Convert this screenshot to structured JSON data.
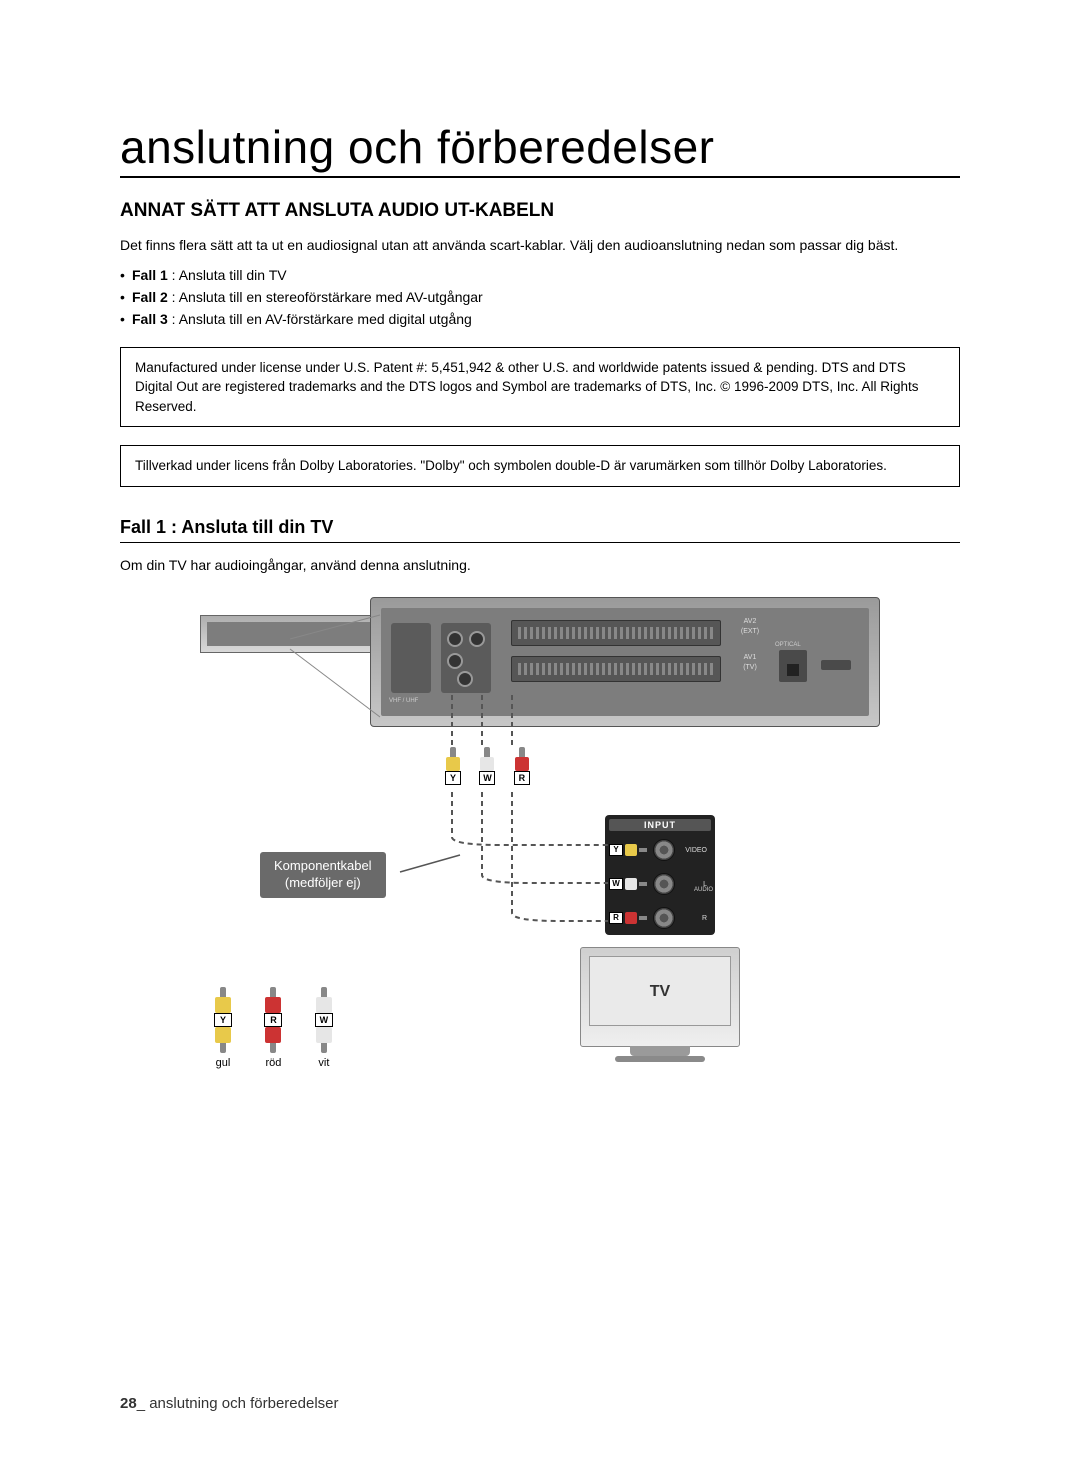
{
  "page": {
    "title": "anslutning och förberedelser",
    "section_heading": "ANNAT SÄTT ATT ANSLUTA AUDIO UT-KABELN",
    "intro": "Det finns flera sätt att ta ut en audiosignal utan att använda scart-kablar. Välj den audioanslutning nedan som passar dig bäst.",
    "bullets": [
      {
        "label": "Fall 1",
        "desc": " : Ansluta till din TV"
      },
      {
        "label": "Fall 2",
        "desc": " : Ansluta till en stereoförstärkare med AV-utgångar"
      },
      {
        "label": "Fall 3",
        "desc": " : Ansluta till en AV-förstärkare med digital utgång"
      }
    ],
    "license1": "Manufactured under license under U.S. Patent #: 5,451,942 & other U.S. and worldwide patents issued & pending. DTS and DTS Digital Out are registered trademarks and the DTS logos and Symbol are trademarks of DTS, Inc. © 1996-2009 DTS, Inc. All Rights Reserved.",
    "license2": "Tillverkad under licens från Dolby Laboratories. \"Dolby\" och symbolen double-D är varumärken som tillhör Dolby Laboratories.",
    "sub_heading": "Fall 1 : Ansluta till din TV",
    "sub_desc": "Om din TV har audioingångar, använd denna anslutning."
  },
  "diagram": {
    "device_labels": {
      "av2": "AV2",
      "av2sub": "(EXT)",
      "av1": "AV1",
      "av1sub": "(TV)",
      "optical": "OPTICAL",
      "rf": "VHF / UHF"
    },
    "plugs_mid": {
      "y": "Y",
      "w": "W",
      "r": "R"
    },
    "component_label_l1": "Komponentkabel",
    "component_label_l2": "(medföljer ej)",
    "input_panel": {
      "header": "INPUT",
      "video": "VIDEO",
      "l": "L",
      "audio": "AUDIO",
      "r": "R",
      "y": "Y",
      "w": "W",
      "rtag": "R"
    },
    "tv_label": "TV",
    "legend": {
      "y": "Y",
      "r": "R",
      "w": "W",
      "yellow": "gul",
      "red": "röd",
      "white": "vit"
    },
    "cable_style": {
      "stroke": "#555555",
      "dash": "5,4",
      "width": 2
    }
  },
  "footer": {
    "page_num": "28",
    "sep": "_ ",
    "text": "anslutning och förberedelser"
  }
}
